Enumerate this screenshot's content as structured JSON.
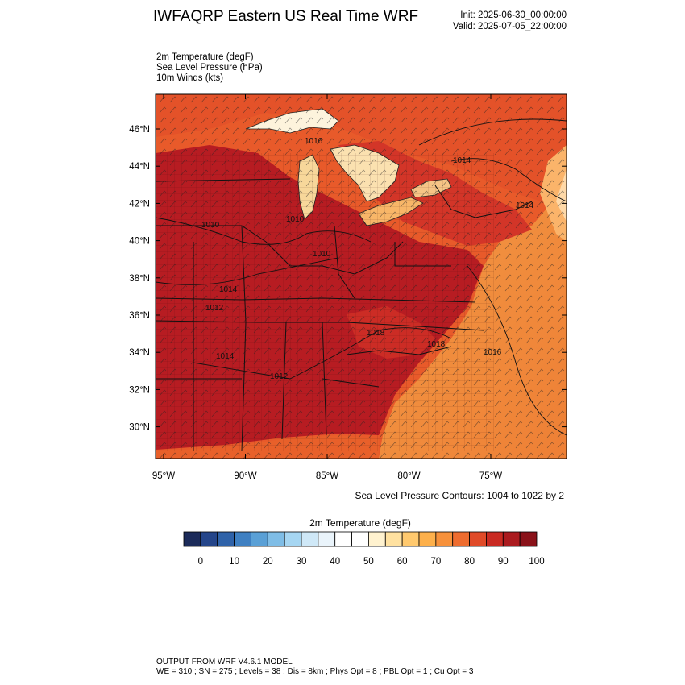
{
  "header": {
    "title": "IWFAQRP Eastern US Real Time WRF",
    "init": "Init: 2025-06-30_00:00:00",
    "valid": "Valid: 2025-07-05_22:00:00"
  },
  "fields": [
    "2m Temperature   (degF)",
    "Sea Level Pressure   (hPa)",
    "10m Winds   (kts)"
  ],
  "map": {
    "lat_labels": [
      "46°N",
      "44°N",
      "42°N",
      "40°N",
      "38°N",
      "36°N",
      "34°N",
      "32°N",
      "30°N"
    ],
    "lon_labels": [
      "95°W",
      "90°W",
      "85°W",
      "80°W",
      "75°W"
    ],
    "isobar_labels": [
      "1016",
      "1014",
      "1010",
      "1010",
      "1010",
      "1014",
      "1014",
      "1018",
      "1018",
      "1012",
      "1014",
      "1012",
      "1016"
    ],
    "colors": {
      "lake": "#fdf3dc",
      "land_hot": "#b51d22",
      "land_warm": "#d8382a",
      "ocean": "#f08a3a"
    }
  },
  "contour_note": "Sea Level Pressure Contours: 1004 to 1022 by 2",
  "colorbar": {
    "title": "2m Temperature  (degF)",
    "labels": [
      "0",
      "10",
      "20",
      "30",
      "40",
      "50",
      "60",
      "70",
      "80",
      "90",
      "100"
    ],
    "colors": [
      "#1c2b5a",
      "#24458a",
      "#2f62a8",
      "#3f80c2",
      "#5aa0d6",
      "#7fbde6",
      "#a6d6f2",
      "#cfe8f7",
      "#eaf4fb",
      "#ffffff",
      "#ffffff",
      "#fff2cf",
      "#ffe1a0",
      "#ffc96e",
      "#fdb04b",
      "#f7913b",
      "#ee6c2f",
      "#e04a28",
      "#c92a22",
      "#ab1b1f",
      "#8a1219"
    ]
  },
  "footer": {
    "line1": "OUTPUT FROM WRF V4.6.1 MODEL",
    "line2": "WE = 310 ; SN = 275 ; Levels = 38 ; Dis = 8km ; Phys Opt = 8 ; PBL Opt = 1 ; Cu Opt = 3"
  }
}
